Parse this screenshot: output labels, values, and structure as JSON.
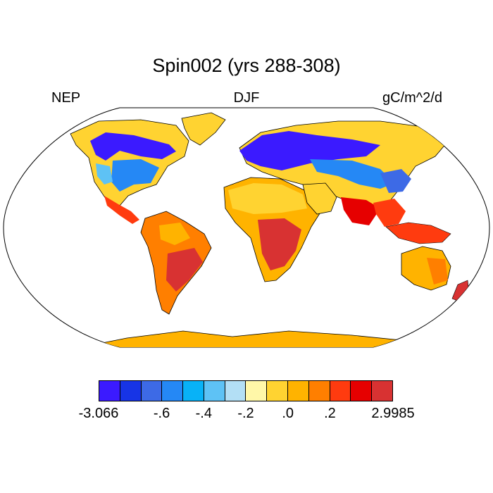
{
  "title": "Spin002 (yrs 288-308)",
  "left_label": "NEP",
  "center_label": "DJF",
  "right_label": "gC/m^2/d",
  "colorbar": {
    "colors": [
      "#3b1aff",
      "#1734e6",
      "#3d6ae6",
      "#2588f5",
      "#08b2f7",
      "#5ec2f5",
      "#b3dff5",
      "#fff7a8",
      "#ffd331",
      "#ffb300",
      "#ff7f00",
      "#ff3b0f",
      "#e60000",
      "#d83232"
    ],
    "tick_labels": [
      "-3.066",
      "-.6",
      "-.4",
      "-.2",
      ".0",
      ".2",
      "2.9985"
    ]
  },
  "map": {
    "projection": "Robinson",
    "ocean_color": "#ffffff",
    "coastline_color": "#000000"
  }
}
